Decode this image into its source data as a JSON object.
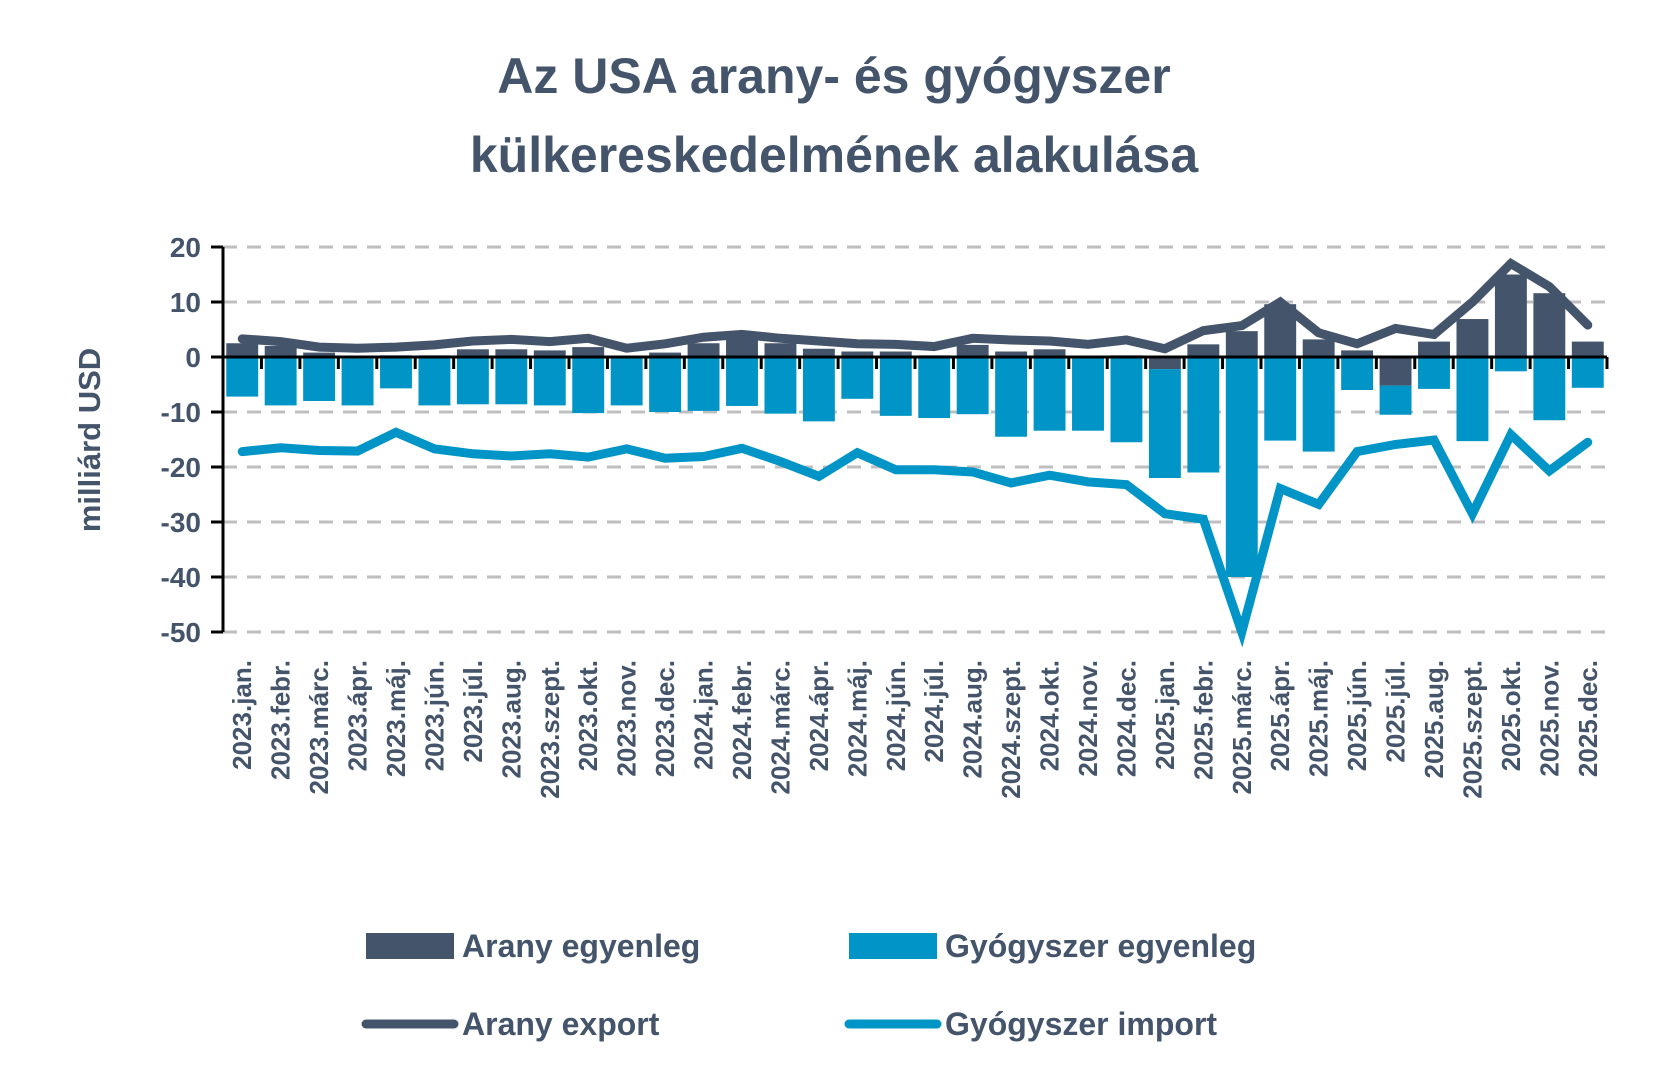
{
  "colors": {
    "gold": "#44546a",
    "pharma": "#0095c6",
    "text": "#44546a",
    "grid": "#bfbfbf",
    "axis": "#000000"
  },
  "chart_data": {
    "type": "bar+line",
    "title": [
      "Az USA arany- és gyógyszer",
      "külkereskedelmének alakulása"
    ],
    "xlabel": "",
    "ylabel": "milliárd USD",
    "ylim": [
      -50,
      20
    ],
    "yticks": [
      20,
      10,
      0,
      -10,
      -20,
      -30,
      -40,
      -50
    ],
    "ytick_labels": [
      "20",
      "10",
      "0",
      "-10",
      "-20",
      "-30",
      "-40",
      "-50"
    ],
    "grid": true,
    "legend_position": "bottom",
    "categories": [
      "2023.jan.",
      "2023.febr.",
      "2023.márc.",
      "2023.ápr.",
      "2023.máj.",
      "2023.jún.",
      "2023.júl.",
      "2023.aug.",
      "2023.szept.",
      "2023.okt.",
      "2023.nov.",
      "2023.dec.",
      "2024.jan.",
      "2024.febr.",
      "2024.márc.",
      "2024.ápr.",
      "2024.máj.",
      "2024.jún.",
      "2024.júl.",
      "2024.aug.",
      "2024.szept.",
      "2024.okt.",
      "2024.nov.",
      "2024.dec.",
      "2025.jan.",
      "2025.febr.",
      "2025.márc.",
      "2025.ápr.",
      "2025.máj.",
      "2025.jún.",
      "2025.júl.",
      "2025.aug.",
      "2025.szept.",
      "2025.okt.",
      "2025.nov.",
      "2025.dec."
    ],
    "series": [
      {
        "name": "Arany egyenleg",
        "kind": "stacked-bar",
        "color": "#44546a",
        "values": [
          2.5,
          2.0,
          0.8,
          -0.3,
          0.3,
          0.3,
          1.4,
          1.4,
          1.2,
          1.8,
          0.2,
          0.8,
          2.5,
          3.6,
          2.5,
          1.5,
          1.0,
          1.0,
          0.3,
          2.2,
          1.0,
          1.4,
          0.2,
          0.3,
          -2.2,
          2.3,
          4.7,
          9.6,
          3.2,
          1.2,
          -5.2,
          2.8,
          6.9,
          15.0,
          11.6,
          2.8
        ]
      },
      {
        "name": "Gyógyszer egyenleg",
        "kind": "stacked-bar",
        "color": "#0095c6",
        "values": [
          -7.2,
          -8.8,
          -8.0,
          -8.5,
          -5.7,
          -8.8,
          -8.6,
          -8.6,
          -8.8,
          -10.2,
          -8.8,
          -10.0,
          -9.8,
          -8.9,
          -10.3,
          -11.7,
          -7.6,
          -10.7,
          -11.1,
          -10.4,
          -14.5,
          -13.4,
          -13.4,
          -15.5,
          -19.8,
          -21.0,
          -40.0,
          -15.2,
          -17.2,
          -6.0,
          -5.3,
          -5.8,
          -15.3,
          -2.6,
          -11.5,
          -5.6
        ]
      },
      {
        "name": "Arany export",
        "kind": "line",
        "color": "#44546a",
        "values": [
          3.3,
          2.8,
          1.8,
          1.6,
          1.8,
          2.2,
          2.9,
          3.2,
          2.8,
          3.4,
          1.6,
          2.4,
          3.6,
          4.1,
          3.4,
          2.9,
          2.4,
          2.3,
          1.9,
          3.4,
          3.1,
          2.9,
          2.3,
          3.1,
          1.5,
          4.8,
          5.7,
          10.0,
          4.4,
          2.4,
          5.2,
          4.1,
          10.0,
          17.0,
          12.8,
          5.8
        ]
      },
      {
        "name": "Gyógyszer import",
        "kind": "line",
        "color": "#0095c6",
        "values": [
          -17.2,
          -16.5,
          -17.0,
          -17.1,
          -13.7,
          -16.7,
          -17.6,
          -18.0,
          -17.6,
          -18.2,
          -16.7,
          -18.4,
          -18.1,
          -16.6,
          -19.0,
          -21.7,
          -17.4,
          -20.5,
          -20.5,
          -20.9,
          -22.9,
          -21.5,
          -22.7,
          -23.2,
          -28.5,
          -29.5,
          -50.0,
          -23.9,
          -26.8,
          -17.2,
          -15.9,
          -15.1,
          -28.5,
          -14.1,
          -20.7,
          -15.5
        ]
      }
    ]
  },
  "legend": {
    "items": [
      {
        "label": "Arany egyenleg",
        "type": "bar",
        "color": "#44546a"
      },
      {
        "label": "Gyógyszer egyenleg",
        "type": "bar",
        "color": "#0095c6"
      },
      {
        "label": "Arany export",
        "type": "line",
        "color": "#44546a"
      },
      {
        "label": "Gyógyszer import",
        "type": "line",
        "color": "#0095c6"
      }
    ]
  }
}
